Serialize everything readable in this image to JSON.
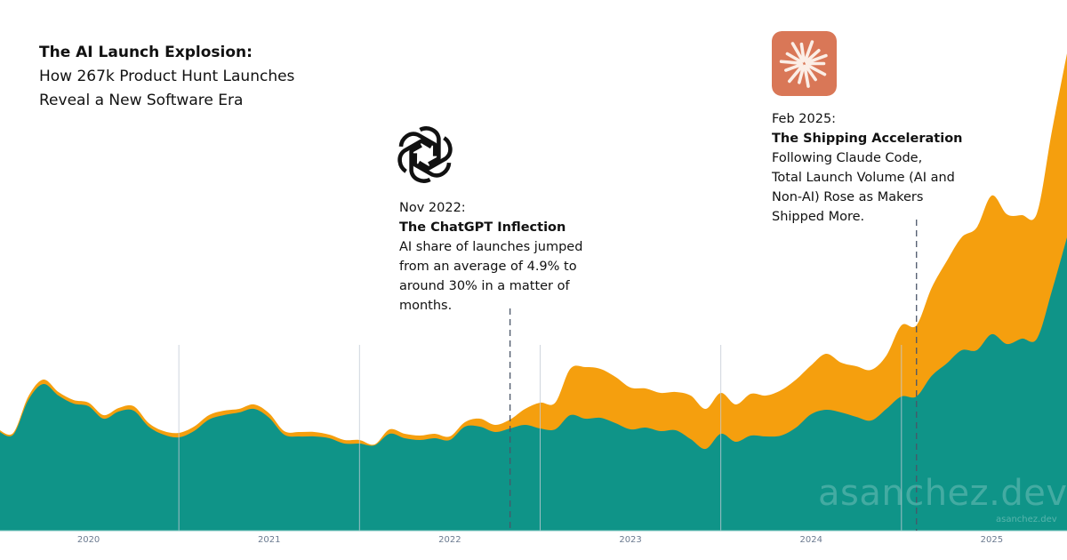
{
  "title": {
    "bold": "The AI Launch Explosion:",
    "line1": "How 267k Product Hunt Launches",
    "line2": "Reveal a New Software Era"
  },
  "annotations": [
    {
      "date": "2022-11",
      "label": "Nov 2022:",
      "heading": "The ChatGPT Inflection",
      "lines": [
        "AI share of launches jumped",
        "from an average of 4.9% to",
        "around 30% in a matter of",
        "months."
      ],
      "icon": "openai-logo-icon"
    },
    {
      "date": "2025-02",
      "label": "Feb 2025:",
      "heading": "The Shipping Acceleration",
      "lines": [
        "Following Claude Code,",
        "Total Launch Volume (AI and",
        "Non-AI) Rose as Makers",
        "Shipped More."
      ],
      "icon": "claude-logo-icon",
      "icon_color": "#d97757"
    }
  ],
  "watermark": {
    "large": "asanchez.dev",
    "small": "asanchez.dev"
  },
  "chart_data": {
    "type": "area",
    "stacked": true,
    "title": "",
    "xlabel": "",
    "ylabel": "",
    "y_axis_shown": false,
    "value_units": "relative (no y-axis printed)",
    "x_ticks": [
      "2020",
      "2021",
      "2022",
      "2023",
      "2024",
      "2025"
    ],
    "grid": "vertical lines at year boundaries",
    "x": [
      "2020-01",
      "2020-02",
      "2020-03",
      "2020-04",
      "2020-05",
      "2020-06",
      "2020-07",
      "2020-08",
      "2020-09",
      "2020-10",
      "2020-11",
      "2020-12",
      "2021-01",
      "2021-02",
      "2021-03",
      "2021-04",
      "2021-05",
      "2021-06",
      "2021-07",
      "2021-08",
      "2021-09",
      "2021-10",
      "2021-11",
      "2021-12",
      "2022-01",
      "2022-02",
      "2022-03",
      "2022-04",
      "2022-05",
      "2022-06",
      "2022-07",
      "2022-08",
      "2022-09",
      "2022-10",
      "2022-11",
      "2022-12",
      "2023-01",
      "2023-02",
      "2023-03",
      "2023-04",
      "2023-05",
      "2023-06",
      "2023-07",
      "2023-08",
      "2023-09",
      "2023-10",
      "2023-11",
      "2023-12",
      "2024-01",
      "2024-02",
      "2024-03",
      "2024-04",
      "2024-05",
      "2024-06",
      "2024-07",
      "2024-08",
      "2024-09",
      "2024-10",
      "2024-11",
      "2024-12",
      "2025-01",
      "2025-02",
      "2025-03",
      "2025-04",
      "2025-05",
      "2025-06",
      "2025-07",
      "2025-08",
      "2025-09",
      "2025-10",
      "2025-11",
      "2025-12"
    ],
    "series": [
      {
        "color": "#0f9488",
        "values": [
          112,
          108,
          147,
          165,
          152,
          143,
          140,
          126,
          134,
          135,
          117,
          108,
          105,
          112,
          125,
          130,
          133,
          137,
          127,
          108,
          106,
          106,
          104,
          98,
          98,
          96,
          109,
          104,
          102,
          104,
          102,
          117,
          117,
          111,
          115,
          119,
          115,
          114,
          130,
          126,
          127,
          121,
          114,
          116,
          112,
          113,
          103,
          92,
          109,
          100,
          107,
          106,
          107,
          116,
          131,
          136,
          133,
          128,
          124,
          137,
          151,
          151,
          174,
          188,
          203,
          203,
          221,
          210,
          216,
          216,
          270,
          330
        ]
      },
      {
        "color": "#f59f0e",
        "values": [
          2,
          2,
          4,
          5,
          4,
          4,
          4,
          4,
          4,
          5,
          4,
          4,
          5,
          5,
          5,
          5,
          4,
          5,
          5,
          4,
          5,
          5,
          4,
          4,
          4,
          1,
          5,
          5,
          5,
          5,
          4,
          5,
          9,
          8,
          10,
          18,
          29,
          30,
          52,
          58,
          55,
          52,
          47,
          44,
          43,
          43,
          49,
          45,
          46,
          42,
          47,
          46,
          51,
          54,
          55,
          63,
          56,
          57,
          57,
          60,
          80,
          80,
          99,
          115,
          127,
          138,
          156,
          146,
          139,
          141,
          180,
          207
        ]
      }
    ]
  }
}
